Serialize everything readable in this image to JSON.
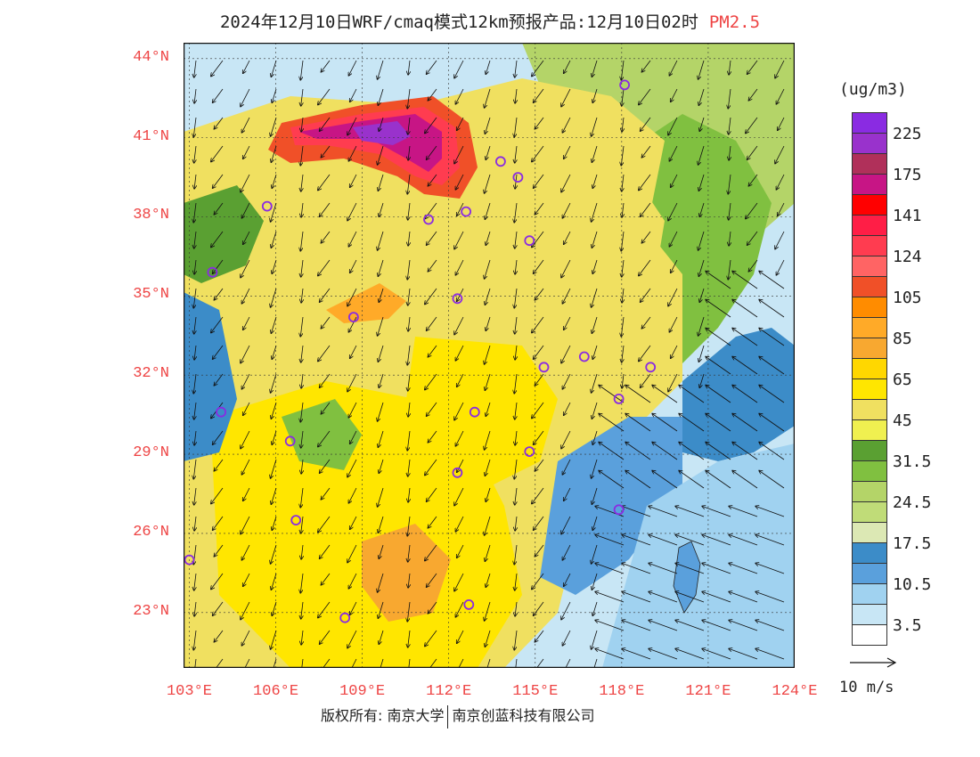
{
  "title": {
    "main": "2024年12月10日WRF/cmaq模式12km预报产品:12月10日02时",
    "pollutant": "PM2.5"
  },
  "axes": {
    "lat_labels": [
      "44°N",
      "41°N",
      "38°N",
      "35°N",
      "32°N",
      "29°N",
      "26°N",
      "23°N"
    ],
    "lat_values": [
      44,
      41,
      38,
      35,
      32,
      29,
      26,
      23
    ],
    "lon_labels": [
      "103°E",
      "106°E",
      "109°E",
      "112°E",
      "115°E",
      "118°E",
      "121°E",
      "124°E"
    ],
    "lon_values": [
      103,
      106,
      109,
      112,
      115,
      118,
      121,
      124
    ],
    "lat_range": [
      20.9,
      44.6
    ],
    "lon_range": [
      102.8,
      124
    ]
  },
  "legend": {
    "unit": "(ug/m3)",
    "colors": [
      "#8a2be2",
      "#9932cc",
      "#b0305a",
      "#c71585",
      "#ff0000",
      "#ff1e46",
      "#ff3c50",
      "#ff6464",
      "#f05028",
      "#ff8c00",
      "#ffaa28",
      "#f8a830",
      "#ffd700",
      "#ffe600",
      "#f0e060",
      "#f0f050",
      "#5aa032",
      "#80c040",
      "#b4d468",
      "#c0dc78",
      "#dce8b4",
      "#3c8cc8",
      "#5aa0dc",
      "#a0d2f0",
      "#c8e6f5",
      "#ffffff"
    ],
    "ticks": [
      "225",
      "175",
      "141",
      "124",
      "105",
      "85",
      "65",
      "45",
      "31.5",
      "24.5",
      "17.5",
      "10.5",
      "3.5"
    ]
  },
  "wind_scale": {
    "label": "10 m/s"
  },
  "stations": [
    {
      "lon": 118.1,
      "lat": 43.0
    },
    {
      "lon": 113.8,
      "lat": 40.1
    },
    {
      "lon": 114.4,
      "lat": 39.5
    },
    {
      "lon": 105.7,
      "lat": 38.4
    },
    {
      "lon": 111.3,
      "lat": 37.9
    },
    {
      "lon": 112.6,
      "lat": 38.2
    },
    {
      "lon": 114.8,
      "lat": 37.1
    },
    {
      "lon": 103.8,
      "lat": 35.9
    },
    {
      "lon": 112.3,
      "lat": 34.9
    },
    {
      "lon": 108.7,
      "lat": 34.2
    },
    {
      "lon": 115.3,
      "lat": 32.3
    },
    {
      "lon": 116.7,
      "lat": 32.7
    },
    {
      "lon": 119.0,
      "lat": 32.3
    },
    {
      "lon": 117.9,
      "lat": 31.1
    },
    {
      "lon": 104.1,
      "lat": 30.6
    },
    {
      "lon": 106.5,
      "lat": 29.5
    },
    {
      "lon": 112.9,
      "lat": 30.6
    },
    {
      "lon": 114.8,
      "lat": 29.1
    },
    {
      "lon": 112.3,
      "lat": 28.3
    },
    {
      "lon": 117.9,
      "lat": 26.9
    },
    {
      "lon": 106.7,
      "lat": 26.5
    },
    {
      "lon": 103.0,
      "lat": 25.0
    },
    {
      "lon": 108.4,
      "lat": 22.8
    },
    {
      "lon": 112.7,
      "lat": 23.3
    }
  ],
  "footer": {
    "left": "版权所有: 南京大学",
    "right": "南京创蓝科技有限公司"
  }
}
